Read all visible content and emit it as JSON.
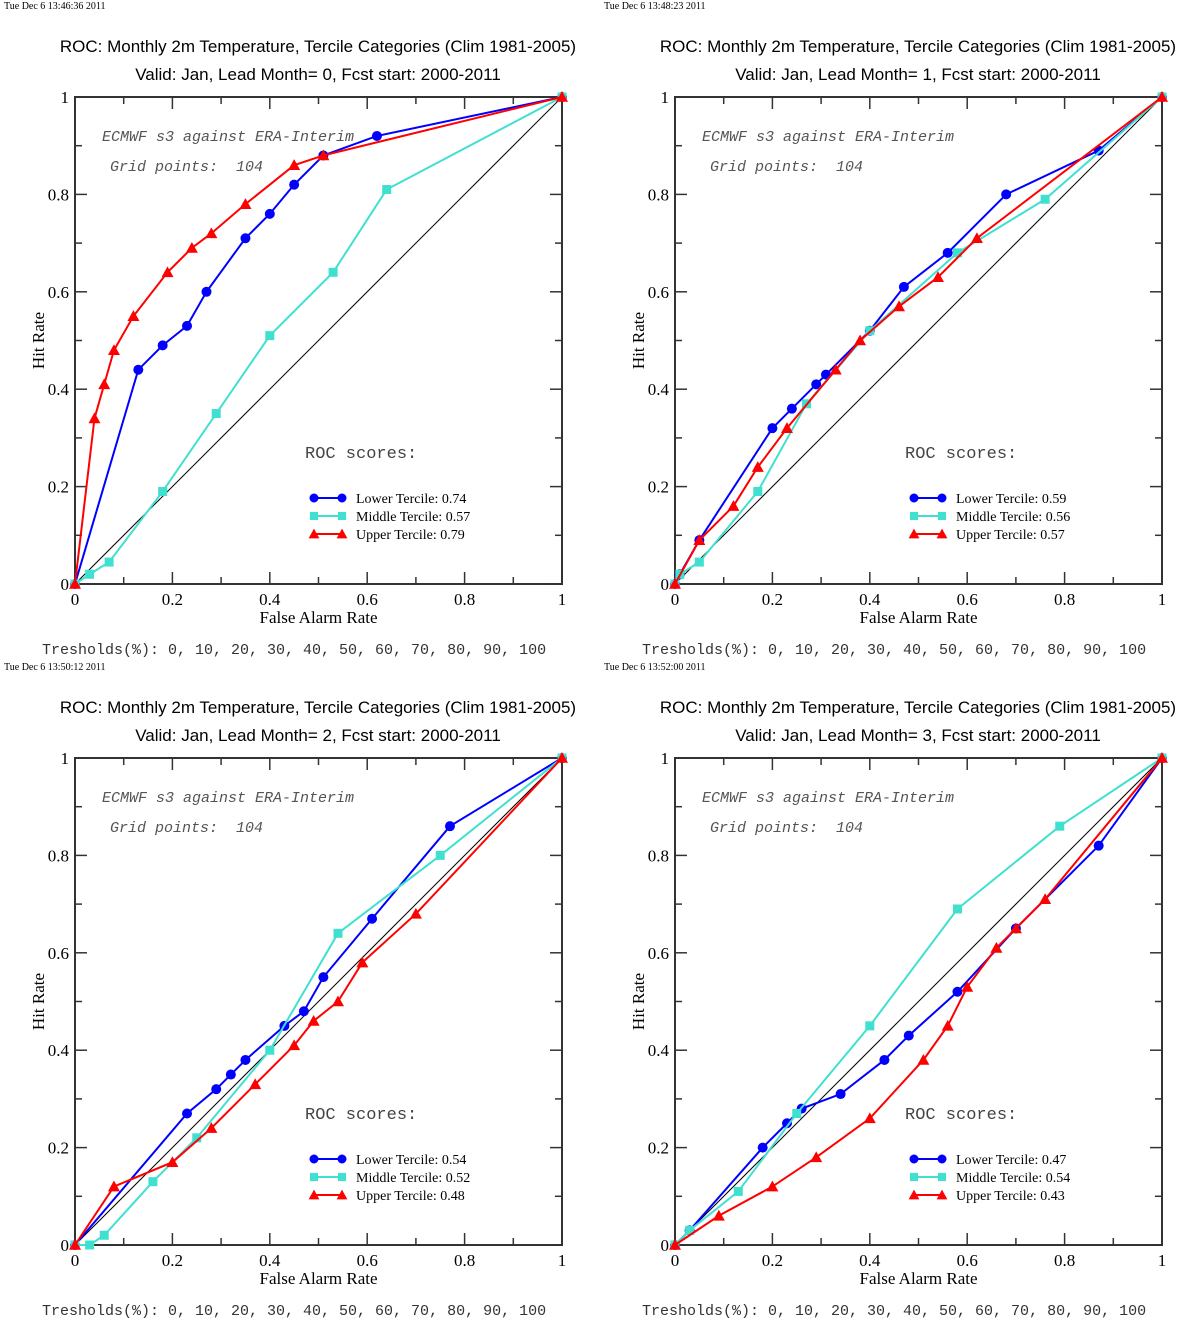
{
  "chart_data": [
    {
      "type": "line",
      "timestamp": "Tue Dec  6 13:46:36 2011",
      "title": "ROC: Monthly 2m Temperature, Tercile Categories (Clim 1981-2005)",
      "subtitle": "Valid: Jan, Lead Month= 0, Fcst start: 2000-2011",
      "xlabel": "False Alarm Rate",
      "ylabel": "Hit Rate",
      "xlim": [
        0,
        1
      ],
      "ylim": [
        0,
        1
      ],
      "xticks": [
        "0",
        "0.2",
        "0.4",
        "0.6",
        "0.8",
        "1"
      ],
      "yticks": [
        "0",
        "0.2",
        "0.4",
        "0.6",
        "0.8",
        "1"
      ],
      "annotation1": "ECMWF s3 against ERA-Interim",
      "annotation2": "Grid points:  104",
      "scores_label": "ROC scores:",
      "thresholds": "Tresholds(%): 0, 10, 20, 30, 40, 50, 60, 70, 80, 90, 100",
      "legend_position": "bottom-right",
      "series": [
        {
          "name": "Lower Tercile",
          "score": "0.74",
          "label": "Lower Tercile: 0.74",
          "color": "#0000ff",
          "marker": "circle",
          "x": [
            0,
            0.13,
            0.18,
            0.23,
            0.27,
            0.35,
            0.4,
            0.45,
            0.51,
            0.62,
            1
          ],
          "y": [
            0,
            0.44,
            0.49,
            0.53,
            0.6,
            0.71,
            0.76,
            0.82,
            0.88,
            0.92,
            1
          ]
        },
        {
          "name": "Middle Tercile",
          "score": "0.57",
          "label": "Middle Tercile: 0.57",
          "color": "#40e0d0",
          "marker": "square",
          "x": [
            0,
            0.03,
            0.07,
            0.18,
            0.29,
            0.4,
            0.53,
            0.64,
            1
          ],
          "y": [
            0,
            0.02,
            0.045,
            0.19,
            0.35,
            0.51,
            0.64,
            0.81,
            1
          ]
        },
        {
          "name": "Upper Tercile",
          "score": "0.79",
          "label": "Upper Tercile: 0.79",
          "color": "#ff0000",
          "marker": "triangle",
          "x": [
            0,
            0.04,
            0.06,
            0.08,
            0.12,
            0.19,
            0.24,
            0.28,
            0.35,
            0.45,
            0.51,
            1
          ],
          "y": [
            0,
            0.34,
            0.41,
            0.48,
            0.55,
            0.64,
            0.69,
            0.72,
            0.78,
            0.86,
            0.88,
            1
          ]
        }
      ]
    },
    {
      "type": "line",
      "timestamp": "Tue Dec  6 13:48:23 2011",
      "title": "ROC: Monthly 2m Temperature, Tercile Categories (Clim 1981-2005)",
      "subtitle": "Valid: Jan, Lead Month= 1, Fcst start: 2000-2011",
      "xlabel": "False Alarm Rate",
      "ylabel": "Hit Rate",
      "xlim": [
        0,
        1
      ],
      "ylim": [
        0,
        1
      ],
      "xticks": [
        "0",
        "0.2",
        "0.4",
        "0.6",
        "0.8",
        "1"
      ],
      "yticks": [
        "0",
        "0.2",
        "0.4",
        "0.6",
        "0.8",
        "1"
      ],
      "annotation1": "ECMWF s3 against ERA-Interim",
      "annotation2": "Grid points:  104",
      "scores_label": "ROC scores:",
      "thresholds": "Tresholds(%): 0, 10, 20, 30, 40, 50, 60, 70, 80, 90, 100",
      "legend_position": "bottom-right",
      "series": [
        {
          "name": "Lower Tercile",
          "score": "0.59",
          "label": "Lower Tercile: 0.59",
          "color": "#0000ff",
          "marker": "circle",
          "x": [
            0,
            0.01,
            0.05,
            0.2,
            0.24,
            0.29,
            0.31,
            0.4,
            0.47,
            0.56,
            0.68,
            0.87,
            1
          ],
          "y": [
            0,
            0.02,
            0.09,
            0.32,
            0.36,
            0.41,
            0.43,
            0.52,
            0.61,
            0.68,
            0.8,
            0.89,
            1
          ]
        },
        {
          "name": "Middle Tercile",
          "score": "0.56",
          "label": "Middle Tercile: 0.56",
          "color": "#40e0d0",
          "marker": "square",
          "x": [
            0,
            0.01,
            0.05,
            0.17,
            0.27,
            0.4,
            0.58,
            0.76,
            1
          ],
          "y": [
            0,
            0.02,
            0.045,
            0.19,
            0.37,
            0.52,
            0.68,
            0.79,
            1
          ]
        },
        {
          "name": "Upper Tercile",
          "score": "0.57",
          "label": "Upper Tercile: 0.57",
          "color": "#ff0000",
          "marker": "triangle",
          "x": [
            0,
            0.05,
            0.12,
            0.17,
            0.23,
            0.33,
            0.38,
            0.46,
            0.54,
            0.62,
            1
          ],
          "y": [
            0,
            0.09,
            0.16,
            0.24,
            0.32,
            0.44,
            0.5,
            0.57,
            0.63,
            0.71,
            1
          ]
        }
      ]
    },
    {
      "type": "line",
      "timestamp": "Tue Dec  6 13:50:12 2011",
      "title": "ROC: Monthly 2m Temperature, Tercile Categories (Clim 1981-2005)",
      "subtitle": "Valid: Jan, Lead Month= 2, Fcst start: 2000-2011",
      "xlabel": "False Alarm Rate",
      "ylabel": "Hit Rate",
      "xlim": [
        0,
        1
      ],
      "ylim": [
        0,
        1
      ],
      "xticks": [
        "0",
        "0.2",
        "0.4",
        "0.6",
        "0.8",
        "1"
      ],
      "yticks": [
        "0",
        "0.2",
        "0.4",
        "0.6",
        "0.8",
        "1"
      ],
      "annotation1": "ECMWF s3 against ERA-Interim",
      "annotation2": "Grid points:  104",
      "scores_label": "ROC scores:",
      "thresholds": "Tresholds(%): 0, 10, 20, 30, 40, 50, 60, 70, 80, 90, 100",
      "legend_position": "bottom-right",
      "series": [
        {
          "name": "Lower Tercile",
          "score": "0.54",
          "label": "Lower Tercile: 0.54",
          "color": "#0000ff",
          "marker": "circle",
          "x": [
            0,
            0.23,
            0.29,
            0.32,
            0.35,
            0.43,
            0.47,
            0.51,
            0.61,
            0.77,
            1
          ],
          "y": [
            0,
            0.27,
            0.32,
            0.35,
            0.38,
            0.45,
            0.48,
            0.55,
            0.67,
            0.86,
            1
          ]
        },
        {
          "name": "Middle Tercile",
          "score": "0.52",
          "label": "Middle Tercile: 0.52",
          "color": "#40e0d0",
          "marker": "square",
          "x": [
            0,
            0.03,
            0.06,
            0.16,
            0.25,
            0.4,
            0.54,
            0.75,
            1
          ],
          "y": [
            0,
            0.0,
            0.02,
            0.13,
            0.22,
            0.4,
            0.64,
            0.8,
            1
          ]
        },
        {
          "name": "Upper Tercile",
          "score": "0.48",
          "label": "Upper Tercile: 0.48",
          "color": "#ff0000",
          "marker": "triangle",
          "x": [
            0,
            0.08,
            0.2,
            0.28,
            0.37,
            0.45,
            0.49,
            0.54,
            0.59,
            0.7,
            1
          ],
          "y": [
            0,
            0.12,
            0.17,
            0.24,
            0.33,
            0.41,
            0.46,
            0.5,
            0.58,
            0.68,
            1
          ]
        }
      ]
    },
    {
      "type": "line",
      "timestamp": "Tue Dec  6 13:52:00 2011",
      "title": "ROC: Monthly 2m Temperature, Tercile Categories (Clim 1981-2005)",
      "subtitle": "Valid: Jan, Lead Month= 3, Fcst start: 2000-2011",
      "xlabel": "False Alarm Rate",
      "ylabel": "Hit Rate",
      "xlim": [
        0,
        1
      ],
      "ylim": [
        0,
        1
      ],
      "xticks": [
        "0",
        "0.2",
        "0.4",
        "0.6",
        "0.8",
        "1"
      ],
      "yticks": [
        "0",
        "0.2",
        "0.4",
        "0.6",
        "0.8",
        "1"
      ],
      "annotation1": "ECMWF s3 against ERA-Interim",
      "annotation2": "Grid points:  104",
      "scores_label": "ROC scores:",
      "thresholds": "Tresholds(%): 0, 10, 20, 30, 40, 50, 60, 70, 80, 90, 100",
      "legend_position": "bottom-right",
      "series": [
        {
          "name": "Lower Tercile",
          "score": "0.47",
          "label": "Lower Tercile: 0.47",
          "color": "#0000ff",
          "marker": "circle",
          "x": [
            0,
            0.03,
            0.18,
            0.23,
            0.26,
            0.34,
            0.43,
            0.48,
            0.58,
            0.7,
            0.87,
            1
          ],
          "y": [
            0,
            0.03,
            0.2,
            0.25,
            0.28,
            0.31,
            0.38,
            0.43,
            0.52,
            0.65,
            0.82,
            1
          ]
        },
        {
          "name": "Middle Tercile",
          "score": "0.54",
          "label": "Middle Tercile: 0.54",
          "color": "#40e0d0",
          "marker": "square",
          "x": [
            0,
            0.03,
            0.13,
            0.25,
            0.4,
            0.58,
            0.79,
            1
          ],
          "y": [
            0,
            0.03,
            0.11,
            0.27,
            0.45,
            0.69,
            0.86,
            1
          ]
        },
        {
          "name": "Upper Tercile",
          "score": "0.43",
          "label": "Upper Tercile: 0.43",
          "color": "#ff0000",
          "marker": "triangle",
          "x": [
            0,
            0.09,
            0.2,
            0.29,
            0.4,
            0.51,
            0.56,
            0.6,
            0.66,
            0.7,
            0.76,
            1
          ],
          "y": [
            0,
            0.06,
            0.12,
            0.18,
            0.26,
            0.38,
            0.45,
            0.53,
            0.61,
            0.65,
            0.71,
            1
          ]
        }
      ]
    }
  ]
}
